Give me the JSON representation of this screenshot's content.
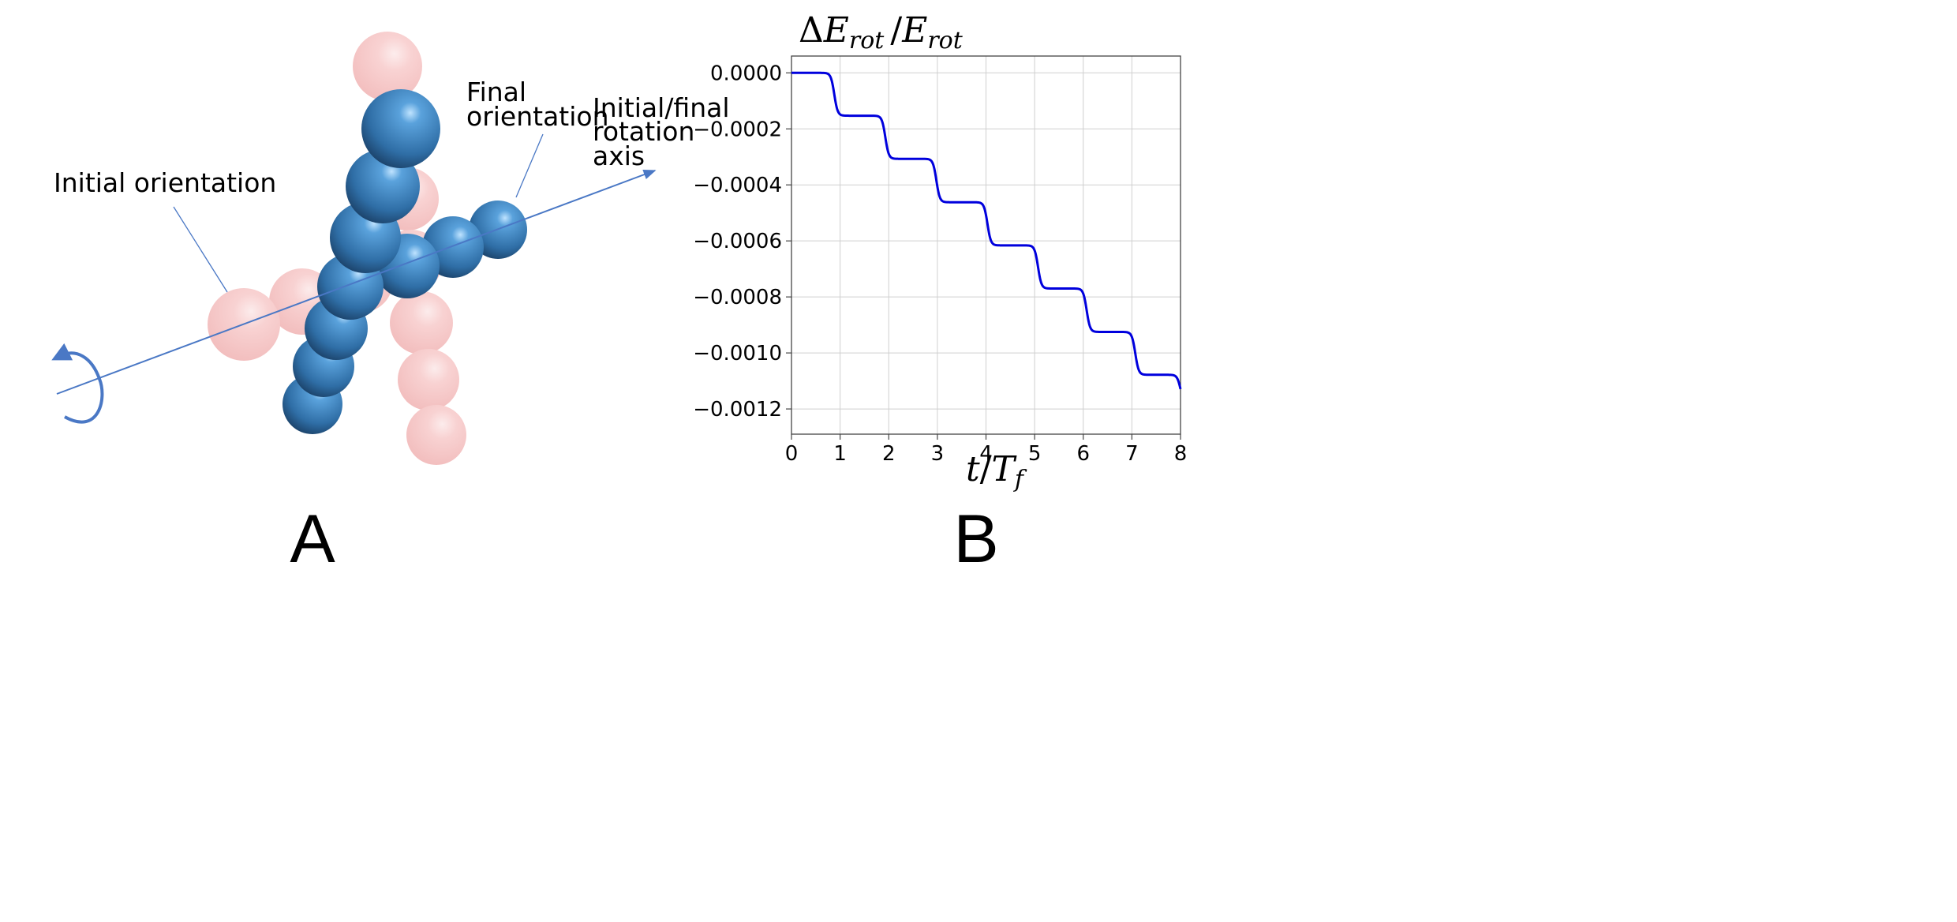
{
  "panel_a": {
    "label": "A",
    "annotations": {
      "initial": "Initial orientation",
      "final_line1": "Final",
      "final_line2": "orientation",
      "axis_line1": "Initial/final",
      "axis_line2": "rotation",
      "axis_line3": "axis"
    },
    "colors": {
      "final_spheres": "#3d7fb8",
      "initial_spheres": "#f2a7a7",
      "axis": "#4a78c5"
    }
  },
  "panel_b": {
    "label": "B",
    "ylabel": {
      "delta": "Δ",
      "sym": "E",
      "sub": "rot",
      "sep": "/"
    },
    "xlabel": {
      "sym": "t",
      "sep": "/",
      "sym2": "T",
      "sub": "f"
    },
    "chart_data": {
      "type": "line",
      "title": "",
      "xlim": [
        0,
        8
      ],
      "ylim": [
        -0.00129,
        6e-05
      ],
      "xticks": [
        "0",
        "1",
        "2",
        "3",
        "4",
        "5",
        "6",
        "7",
        "8"
      ],
      "xtick_values": [
        0,
        1,
        2,
        3,
        4,
        5,
        6,
        7,
        8
      ],
      "yticks": [
        "0.0000",
        "−0.0002",
        "−0.0004",
        "−0.0006",
        "−0.0008",
        "−0.0010",
        "−0.0012"
      ],
      "ytick_values": [
        0,
        -0.0002,
        -0.0004,
        -0.0006,
        -0.0008,
        -0.001,
        -0.0012
      ],
      "grid": true,
      "line_color": "#0000dd",
      "step_times": [
        0.88,
        1.93,
        2.98,
        4.03,
        5.07,
        6.07,
        7.07,
        8.0
      ],
      "plateau_levels": [
        0,
        -0.000153,
        -0.000307,
        -0.000462,
        -0.000616,
        -0.00077,
        -0.000925,
        -0.001078,
        -0.00118
      ]
    }
  }
}
